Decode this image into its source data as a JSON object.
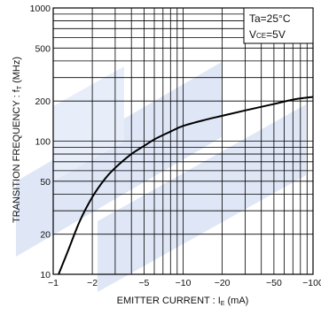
{
  "chart_data": {
    "type": "line",
    "title": "",
    "xlabel": "EMITTER  CURRENT : I",
    "xlabel_sub": "E",
    "xlabel_unit": " (mA)",
    "ylabel": "TRANSITION FREQUENCY : f",
    "ylabel_sub": "T",
    "ylabel_unit": " (MHz)",
    "x_scale": "log",
    "y_scale": "log",
    "xlim": [
      -1,
      -100
    ],
    "ylim": [
      10,
      1000
    ],
    "grid": true,
    "x_ticks": [
      {
        "value": -1,
        "label": "−1"
      },
      {
        "value": -2,
        "label": "−2"
      },
      {
        "value": -5,
        "label": "−5"
      },
      {
        "value": -10,
        "label": "−10"
      },
      {
        "value": -20,
        "label": "−20"
      },
      {
        "value": -50,
        "label": "−50"
      },
      {
        "value": -100,
        "label": "−100"
      }
    ],
    "y_ticks": [
      {
        "value": 10,
        "label": "10"
      },
      {
        "value": 20,
        "label": "20"
      },
      {
        "value": 50,
        "label": "50"
      },
      {
        "value": 100,
        "label": "100"
      },
      {
        "value": 200,
        "label": "200"
      },
      {
        "value": 500,
        "label": "500"
      },
      {
        "value": 1000,
        "label": "1000"
      }
    ],
    "series": [
      {
        "x": [
          -1.1,
          -1.3,
          -1.6,
          -2,
          -2.5,
          -3,
          -4,
          -5,
          -6,
          -8,
          -10,
          -15,
          -20,
          -30,
          -50,
          -70,
          -100
        ],
        "y": [
          10,
          15,
          25,
          38,
          52,
          63,
          80,
          92,
          103,
          118,
          130,
          145,
          155,
          170,
          190,
          205,
          215
        ]
      }
    ],
    "conditions": {
      "line1": "Ta=25°C",
      "line2_prefix": "V",
      "line2_sub": "CE",
      "line2_suffix": "=5V"
    }
  },
  "colors": {
    "grid": "#000000",
    "curve": "#000000",
    "watermark": "#dfe6f6"
  }
}
